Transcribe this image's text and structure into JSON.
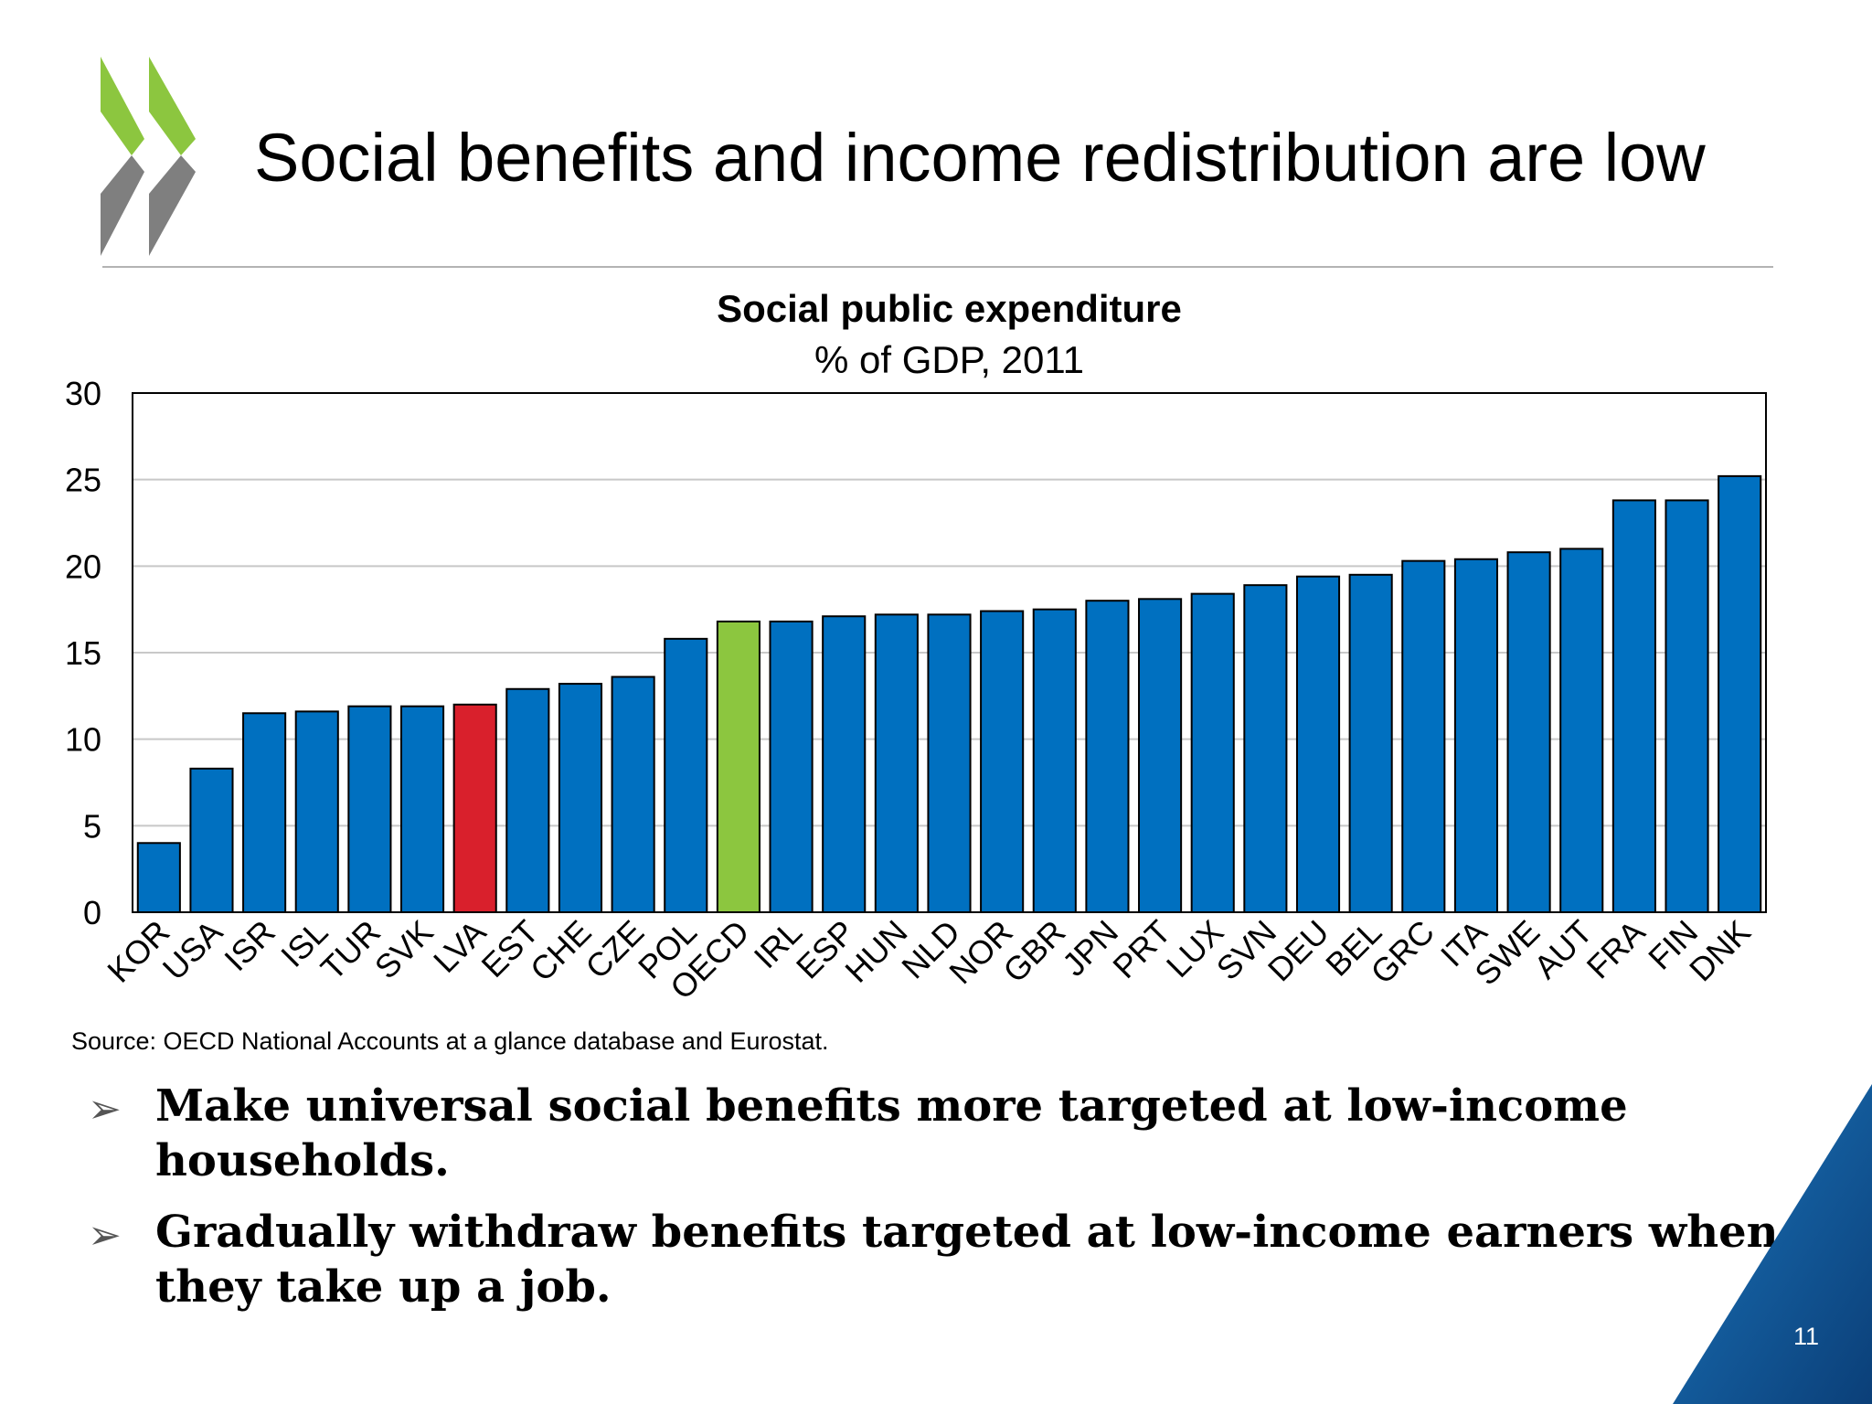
{
  "slide": {
    "title": "Social benefits and income redistribution are low",
    "source": "Source: OECD National Accounts at a glance database and Eurostat.",
    "bullets": [
      "Make universal social benefits more targeted at low-income households.",
      "Gradually withdraw benefits targeted at low-income earners when they take up a job."
    ],
    "page_number": "11"
  },
  "colors": {
    "bar_default": "#0070c0",
    "bar_highlight": "#d9202c",
    "bar_average": "#8cc63f",
    "logo_green": "#8cc63f",
    "logo_gray": "#7f7f7f",
    "corner_blue_light": "#1b75bc",
    "corner_blue_dark": "#0b3f78"
  },
  "chart_data": {
    "type": "bar",
    "title": "Social public expenditure",
    "subtitle": "% of GDP, 2011",
    "categories": [
      "KOR",
      "USA",
      "ISR",
      "ISL",
      "TUR",
      "SVK",
      "LVA",
      "EST",
      "CHE",
      "CZE",
      "POL",
      "OECD",
      "IRL",
      "ESP",
      "HUN",
      "NLD",
      "NOR",
      "GBR",
      "JPN",
      "PRT",
      "LUX",
      "SVN",
      "DEU",
      "BEL",
      "GRC",
      "ITA",
      "SWE",
      "AUT",
      "FRA",
      "FIN",
      "DNK"
    ],
    "values": [
      4.0,
      8.3,
      11.5,
      11.6,
      11.9,
      11.9,
      12.0,
      12.9,
      13.2,
      13.6,
      15.8,
      16.8,
      16.8,
      17.1,
      17.2,
      17.2,
      17.4,
      17.5,
      18.0,
      18.1,
      18.4,
      18.9,
      19.4,
      19.5,
      20.3,
      20.4,
      20.8,
      21.0,
      23.8,
      23.8,
      25.2
    ],
    "highlight": {
      "LVA": "bar_highlight",
      "OECD": "bar_average"
    },
    "ylim": [
      0,
      30
    ],
    "yticks": [
      0,
      5,
      10,
      15,
      20,
      25,
      30
    ],
    "grid": true
  }
}
